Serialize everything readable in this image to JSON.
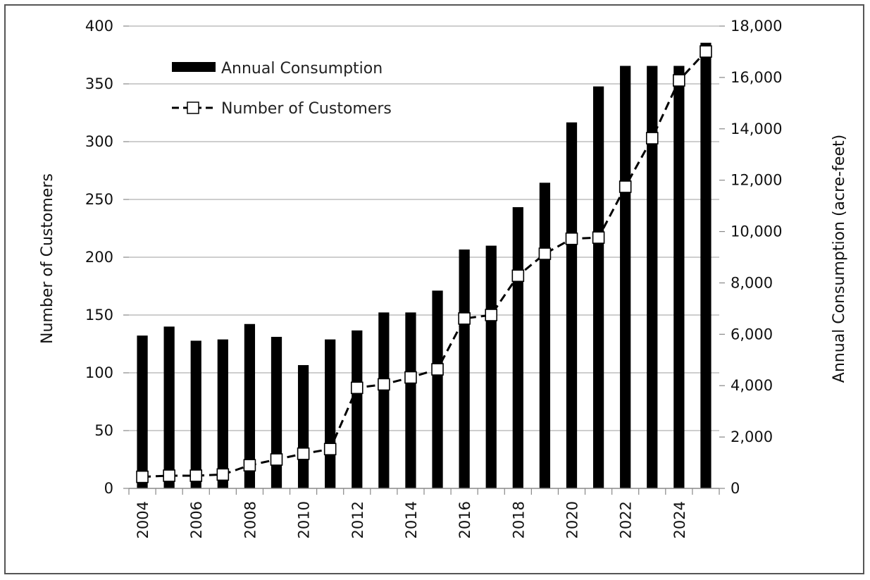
{
  "chart_data": {
    "type": "bar",
    "title": "",
    "x": [
      2004,
      2005,
      2006,
      2007,
      2008,
      2009,
      2010,
      2011,
      2012,
      2013,
      2014,
      2015,
      2016,
      2017,
      2018,
      2019,
      2020,
      2021,
      2022,
      2023,
      2024,
      2025
    ],
    "x_tick_labels": [
      "2004",
      "2006",
      "2008",
      "2010",
      "2012",
      "2014",
      "2016",
      "2018",
      "2020",
      "2022",
      "2024"
    ],
    "y_left": {
      "label": "Number of Customers",
      "ticks": [
        "0",
        "50",
        "100",
        "150",
        "200",
        "250",
        "300",
        "350",
        "400"
      ],
      "ylim": [
        0,
        400
      ]
    },
    "y_right": {
      "label": "Annual Consumption (acre-feet)",
      "ticks": [
        "0",
        "2,000",
        "4,000",
        "6,000",
        "8,000",
        "10,000",
        "12,000",
        "14,000",
        "16,000",
        "18,000"
      ],
      "ylim": [
        0,
        18000
      ]
    },
    "series": [
      {
        "name": "Annual Consumption",
        "kind": "bar",
        "axis": "right",
        "color": "#000000",
        "values": [
          5950,
          6300,
          5750,
          5800,
          6400,
          5900,
          4800,
          5800,
          6150,
          6850,
          6850,
          7700,
          9300,
          9450,
          10950,
          11900,
          14250,
          15650,
          16450,
          16450,
          16450,
          17350
        ]
      },
      {
        "name": "Number of Customers",
        "kind": "line",
        "style": "dashed",
        "marker": "square-open",
        "axis": "left",
        "color": "#000000",
        "values": [
          10,
          11,
          11,
          12,
          20,
          25,
          30,
          34,
          87,
          90,
          96,
          103,
          147,
          150,
          184,
          203,
          216,
          217,
          261,
          303,
          353,
          378
        ]
      }
    ],
    "grid": true,
    "legend": {
      "placement": "top-left",
      "entries": [
        "Annual Consumption",
        "Number of Customers"
      ]
    }
  }
}
